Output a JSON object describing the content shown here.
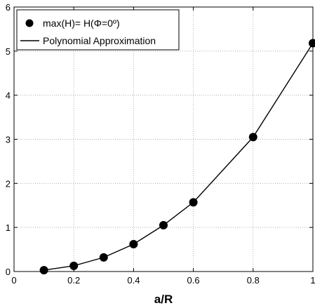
{
  "chart_data": {
    "type": "line",
    "xlabel": "a/R",
    "ylabel": "",
    "xlim": [
      0,
      1
    ],
    "ylim": [
      0,
      6
    ],
    "xticks": [
      0,
      0.2,
      0.4,
      0.6,
      0.8,
      1
    ],
    "yticks": [
      0,
      1,
      2,
      3,
      4,
      5,
      6
    ],
    "xtick_labels": [
      "0",
      "0.2",
      "0.4",
      "0.6",
      "0.8",
      "1"
    ],
    "ytick_labels": [
      "0",
      "1",
      "2",
      "3",
      "4",
      "5",
      "6"
    ],
    "grid": true,
    "legend_position": "top-left",
    "series": [
      {
        "name": "max(H)= H(Φ=0º)",
        "style": "markers",
        "color": "#000000",
        "x": [
          0.1,
          0.2,
          0.3,
          0.4,
          0.5,
          0.6,
          0.8,
          1.0
        ],
        "y": [
          0.03,
          0.13,
          0.32,
          0.62,
          1.05,
          1.57,
          3.05,
          5.18
        ]
      },
      {
        "name": "Polynomial Approximation",
        "style": "line",
        "color": "#000000",
        "x": [
          0.1,
          0.2,
          0.3,
          0.4,
          0.5,
          0.6,
          0.8,
          1.0
        ],
        "y": [
          0.03,
          0.13,
          0.32,
          0.62,
          1.05,
          1.57,
          3.05,
          5.18
        ]
      }
    ]
  }
}
